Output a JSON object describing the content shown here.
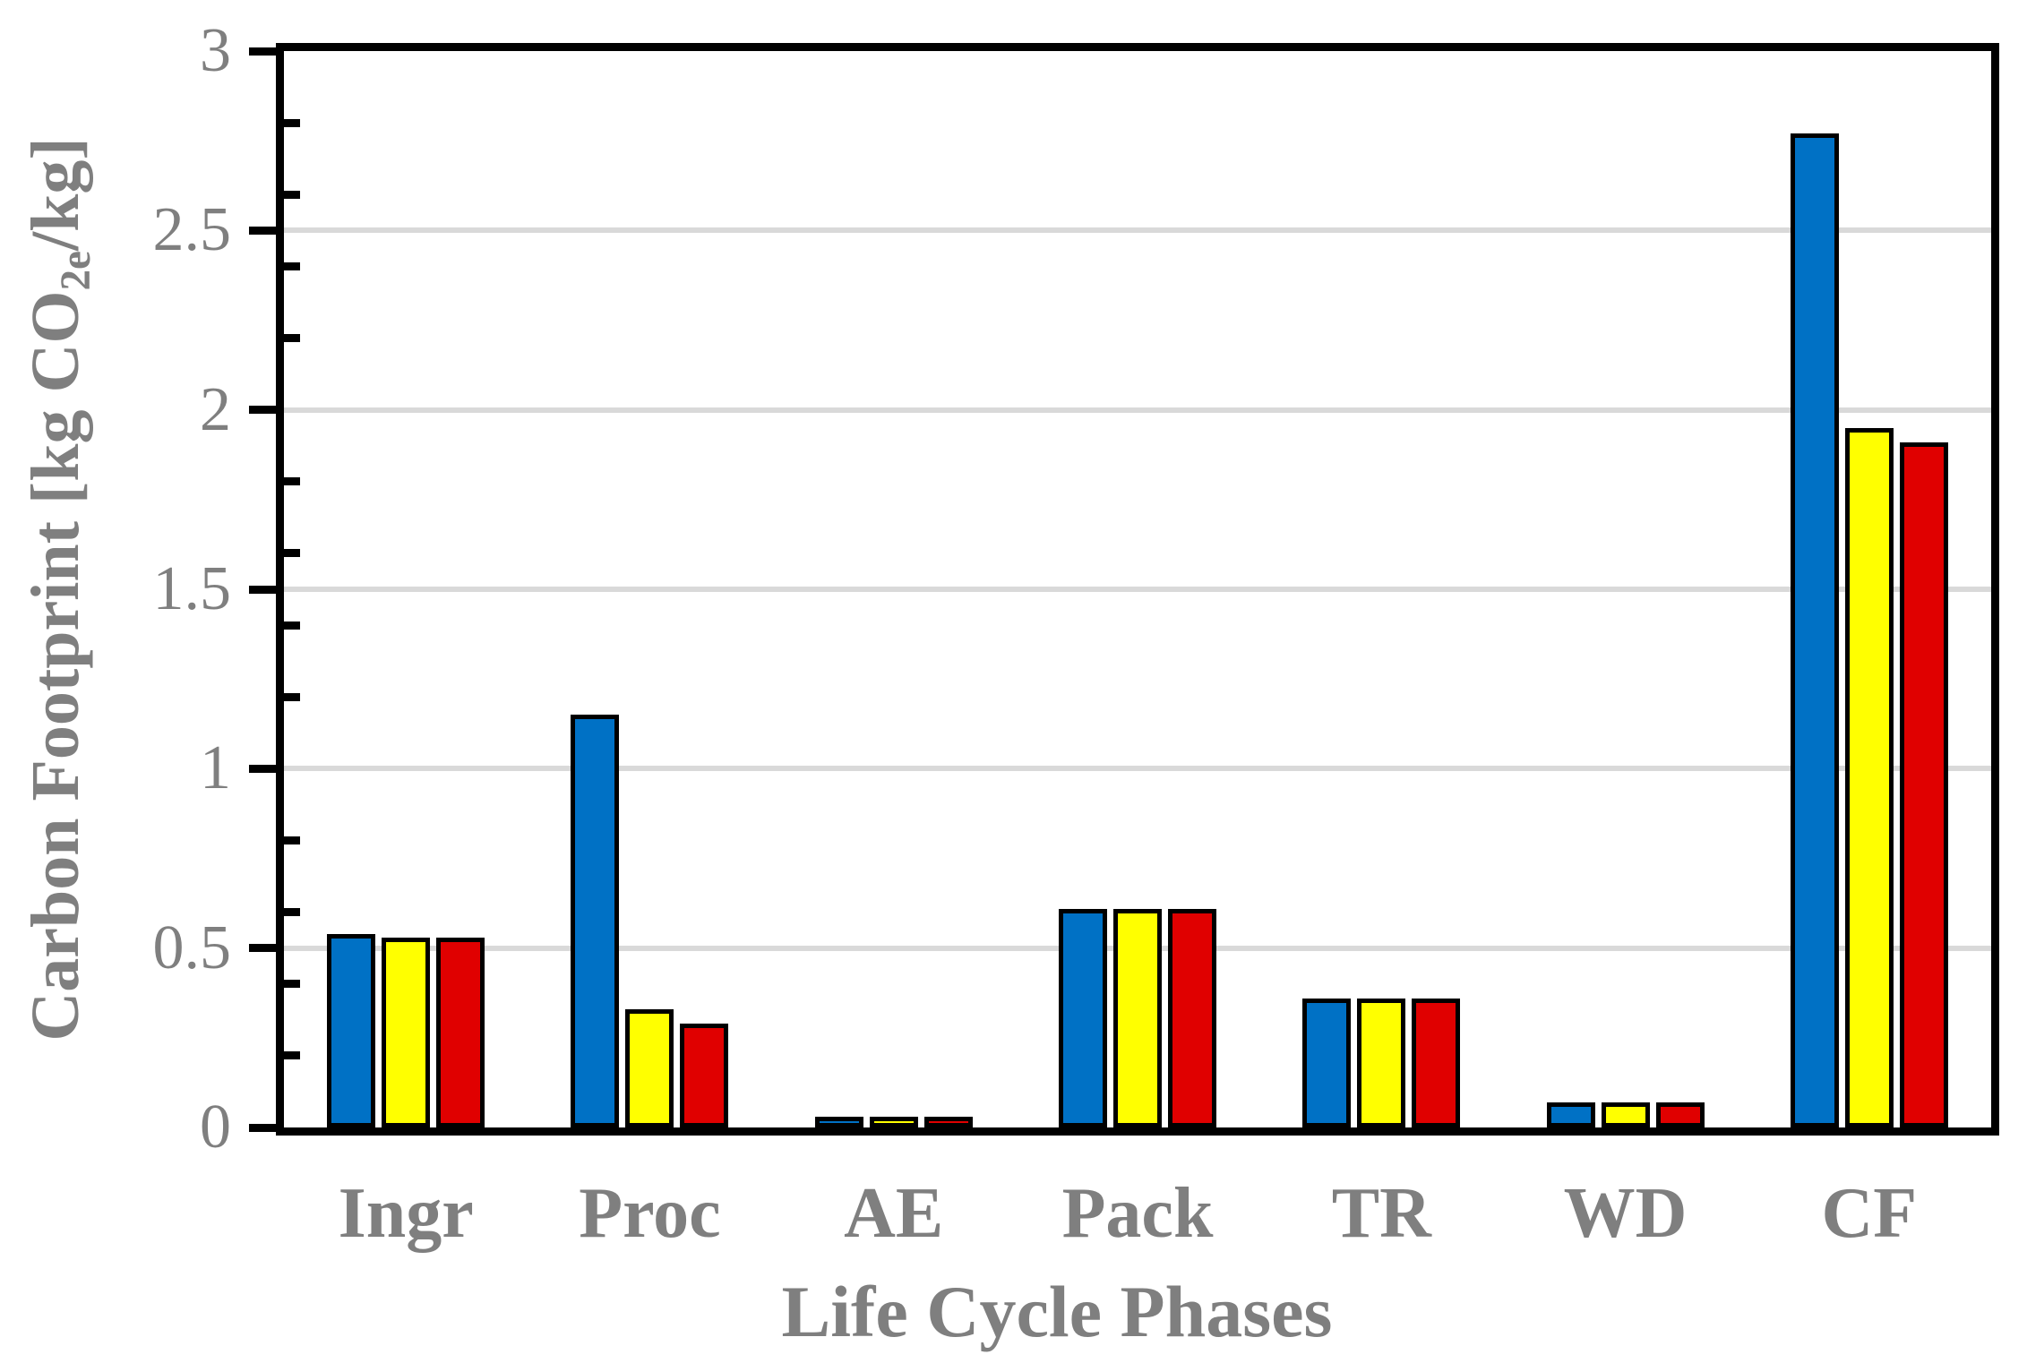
{
  "figure": {
    "background": "#FFFFFF",
    "text_color": "#7F7F7F",
    "grid_color": "#D9D9D9",
    "axis_color": "#000000"
  },
  "chart_data": {
    "type": "bar",
    "categories": [
      "Ingr",
      "Proc",
      "AE",
      "Pack",
      "TR",
      "WD",
      "CF"
    ],
    "series": [
      {
        "name": "blue",
        "color": "#0071C5",
        "values": [
          0.54,
          1.15,
          0.03,
          0.61,
          0.36,
          0.07,
          2.77
        ]
      },
      {
        "name": "yellow",
        "color": "#FFFF00",
        "values": [
          0.53,
          0.33,
          0.03,
          0.61,
          0.36,
          0.07,
          1.95
        ]
      },
      {
        "name": "red",
        "color": "#E00000",
        "values": [
          0.53,
          0.29,
          0.03,
          0.61,
          0.36,
          0.07,
          1.91
        ]
      }
    ],
    "title": "",
    "xlabel": "Life Cycle Phases",
    "ylabel": "Carbon Footprint [kg CO2e/kg]",
    "ylabel_parts": {
      "pre": "Carbon Footprint [kg CO",
      "sub": "2e",
      "post": "/kg]"
    },
    "ylim": [
      0,
      3
    ],
    "y_major_ticks": [
      0,
      0.5,
      1,
      1.5,
      2,
      2.5,
      3
    ],
    "y_tick_labels": [
      "0",
      "0.5",
      "1",
      "1.5",
      "2",
      "2.5",
      "3"
    ],
    "y_minor_unit": 0.2,
    "grid": "horizontal-major-only",
    "legend": "none",
    "bar_outline_color": "#000000"
  }
}
